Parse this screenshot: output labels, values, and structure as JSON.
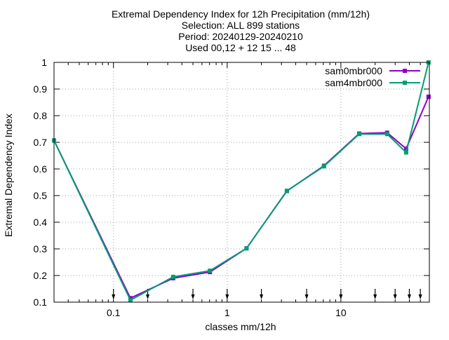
{
  "chart_data": {
    "type": "line",
    "title": [
      "Extremal Dependency Index  for 12h Precipitation (mm/12h)",
      "Selection: ALL    899 stations",
      "Period: 20240129-20240210",
      "Used 00,12 + 12 15 ... 48"
    ],
    "xlabel": "classes mm/12h",
    "ylabel": "Extremal Dependency Index",
    "xscale": "log",
    "xlim": [
      0.03,
      60
    ],
    "ylim": [
      0.1,
      1.0
    ],
    "xticks": [
      0.1,
      1,
      10
    ],
    "xtick_labels": [
      "0.1",
      "1",
      "10"
    ],
    "yticks": [
      0.1,
      0.2,
      0.3,
      0.4,
      0.5,
      0.6,
      0.7,
      0.8,
      0.9,
      1.0
    ],
    "ytick_labels": [
      "0.1",
      "0.2",
      "0.3",
      "0.4",
      "0.5",
      "0.6",
      "0.7",
      "0.8",
      "0.9",
      "1"
    ],
    "grid": true,
    "legend_position": "top-right",
    "threshold_markers": [
      0.1,
      0.2,
      0.5,
      1,
      2,
      5,
      10,
      20,
      30,
      40,
      50
    ],
    "x": [
      0.03,
      0.141,
      0.335,
      0.705,
      1.48,
      3.35,
      7.1,
      14.5,
      25.5,
      37.5,
      59.0
    ],
    "series": [
      {
        "name": "sam0mbr000",
        "color": "#8b00c8",
        "marker": "square",
        "values": [
          0.707,
          0.115,
          0.19,
          0.213,
          0.302,
          0.517,
          0.612,
          0.733,
          0.736,
          0.676,
          0.871
        ]
      },
      {
        "name": "sam4mbr000",
        "color": "#009e73",
        "marker": "square",
        "values": [
          0.707,
          0.107,
          0.195,
          0.218,
          0.302,
          0.518,
          0.61,
          0.731,
          0.731,
          0.662,
          1.0
        ]
      }
    ]
  }
}
